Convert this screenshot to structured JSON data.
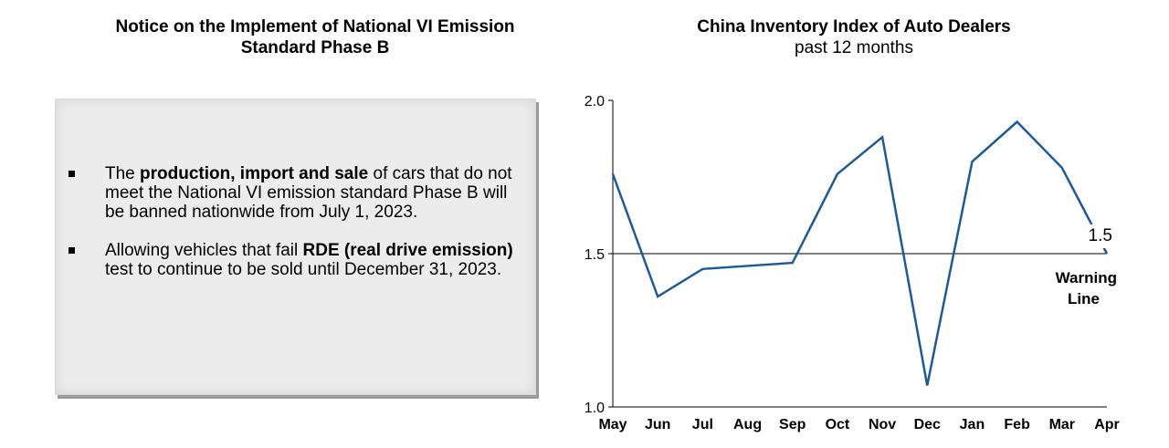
{
  "notice": {
    "title": "Notice on the Implement of National VI Emission Standard Phase B",
    "bullets": [
      {
        "parts": [
          {
            "text": "The ",
            "bold": false
          },
          {
            "text": "production, import and sale",
            "bold": true
          },
          {
            "text": " of cars that do not meet the National VI emission standard Phase B will be banned nationwide from July 1, 2023.",
            "bold": false
          }
        ]
      },
      {
        "parts": [
          {
            "text": "Allowing vehicles that fail ",
            "bold": false
          },
          {
            "text": "RDE (real drive emission)",
            "bold": true
          },
          {
            "text": " test to continue to be sold until December 31, 2023.",
            "bold": false
          }
        ]
      }
    ]
  },
  "chart_title": "China Inventory Index of Auto Dealers",
  "chart_subtitle": "past 12 months",
  "chart_data": {
    "type": "line",
    "title": "China Inventory Index of Auto Dealers",
    "subtitle": "past 12 months",
    "categories": [
      "May",
      "Jun",
      "Jul",
      "Aug",
      "Sep",
      "Oct",
      "Nov",
      "Dec",
      "Jan",
      "Feb",
      "Mar",
      "Apr"
    ],
    "series": [
      {
        "values": [
          1.76,
          1.36,
          1.45,
          1.46,
          1.47,
          1.76,
          1.88,
          1.07,
          1.8,
          1.93,
          1.78,
          1.5
        ],
        "color": "#1f5a96"
      }
    ],
    "ylim": [
      1.0,
      2.0
    ],
    "yticks": [
      "1.0",
      "1.5",
      "2.0"
    ],
    "reference_line": {
      "value": 1.5,
      "label": "Warning Line",
      "value_label": "1.5"
    },
    "grid": false
  }
}
